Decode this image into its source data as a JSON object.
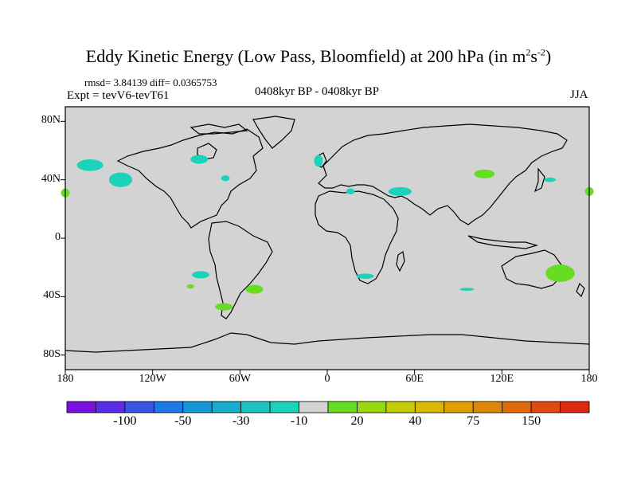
{
  "title": {
    "main": "Eddy Kinetic Energy (Low Pass, Bloomfield) at 200 hPa (in m",
    "sup1": "2",
    "mid": "s",
    "sup2": "-2",
    "end": ")"
  },
  "stats": {
    "rmsd": "rmsd= 3.84139 diff= 0.0365753"
  },
  "experiment": "Expt = tevV6-tevT61",
  "period": "0408kyr BP - 0408kyr BP",
  "season": "JJA",
  "map": {
    "projection": "cylindrical equidistant",
    "lon_range": [
      -180,
      180
    ],
    "lat_range": [
      -90,
      90
    ],
    "background_color": "#d3d3d3",
    "lat_labels": [
      "80N",
      "40N",
      "0",
      "40S",
      "80S"
    ],
    "lat_values": [
      80,
      40,
      0,
      -40,
      -80
    ],
    "lon_labels": [
      "180",
      "120W",
      "60W",
      "0",
      "60E",
      "120E",
      "180"
    ],
    "lon_values": [
      -180,
      -120,
      -60,
      0,
      60,
      120,
      180
    ],
    "anomalies": [
      {
        "lon": -163,
        "lat": 50,
        "rlon": 9,
        "rlat": 4,
        "color": "#1bd3b8"
      },
      {
        "lon": -142,
        "lat": 40,
        "rlon": 8,
        "rlat": 5,
        "color": "#1bd3b8"
      },
      {
        "lon": -180,
        "lat": 31,
        "rlon": 3,
        "rlat": 3,
        "color": "#66dd22"
      },
      {
        "lon": -88,
        "lat": 54,
        "rlon": 6,
        "rlat": 3,
        "color": "#1bd3b8"
      },
      {
        "lon": -70,
        "lat": 41,
        "rlon": 3,
        "rlat": 2,
        "color": "#1bd3b8"
      },
      {
        "lon": -6,
        "lat": 53,
        "rlon": 3,
        "rlat": 4,
        "color": "#1bd3b8"
      },
      {
        "lon": 16,
        "lat": 32,
        "rlon": 3,
        "rlat": 2,
        "color": "#1bd3b8"
      },
      {
        "lon": 50,
        "lat": 32,
        "rlon": 8,
        "rlat": 3,
        "color": "#1bd3b8"
      },
      {
        "lon": 108,
        "lat": 44,
        "rlon": 7,
        "rlat": 3,
        "color": "#66dd22"
      },
      {
        "lon": 153,
        "lat": 40,
        "rlon": 4,
        "rlat": 1.5,
        "color": "#1bd3b8"
      },
      {
        "lon": 180,
        "lat": 32,
        "rlon": 3,
        "rlat": 3,
        "color": "#66dd22"
      },
      {
        "lon": -87,
        "lat": -25,
        "rlon": 6,
        "rlat": 2.5,
        "color": "#1bd3b8"
      },
      {
        "lon": -94,
        "lat": -33,
        "rlon": 2.5,
        "rlat": 1.5,
        "color": "#66dd22"
      },
      {
        "lon": -50,
        "lat": -35,
        "rlon": 6,
        "rlat": 3,
        "color": "#66dd22"
      },
      {
        "lon": -71,
        "lat": -47,
        "rlon": 6,
        "rlat": 2.5,
        "color": "#66dd22"
      },
      {
        "lon": 26,
        "lat": -26,
        "rlon": 6,
        "rlat": 1.8,
        "color": "#1bd3b8"
      },
      {
        "lon": 96,
        "lat": -35,
        "rlon": 5,
        "rlat": 1,
        "color": "#1bd3b8"
      },
      {
        "lon": 160,
        "lat": -24,
        "rlon": 10,
        "rlat": 6,
        "color": "#66dd22"
      }
    ]
  },
  "colorbar": {
    "colors": [
      "#7a10e0",
      "#5a2ce8",
      "#3b55e8",
      "#1e78e6",
      "#1496d8",
      "#17adcc",
      "#1bc4c0",
      "#1bd3b8",
      "#d3d3d3",
      "#66dd22",
      "#98d80e",
      "#c4cc06",
      "#d9b806",
      "#e0a000",
      "#e08806",
      "#e06a0a",
      "#e04a10",
      "#dd2a10"
    ],
    "labels": [
      "-100",
      "-50",
      "-30",
      "-10",
      "20",
      "40",
      "75",
      "150"
    ]
  }
}
